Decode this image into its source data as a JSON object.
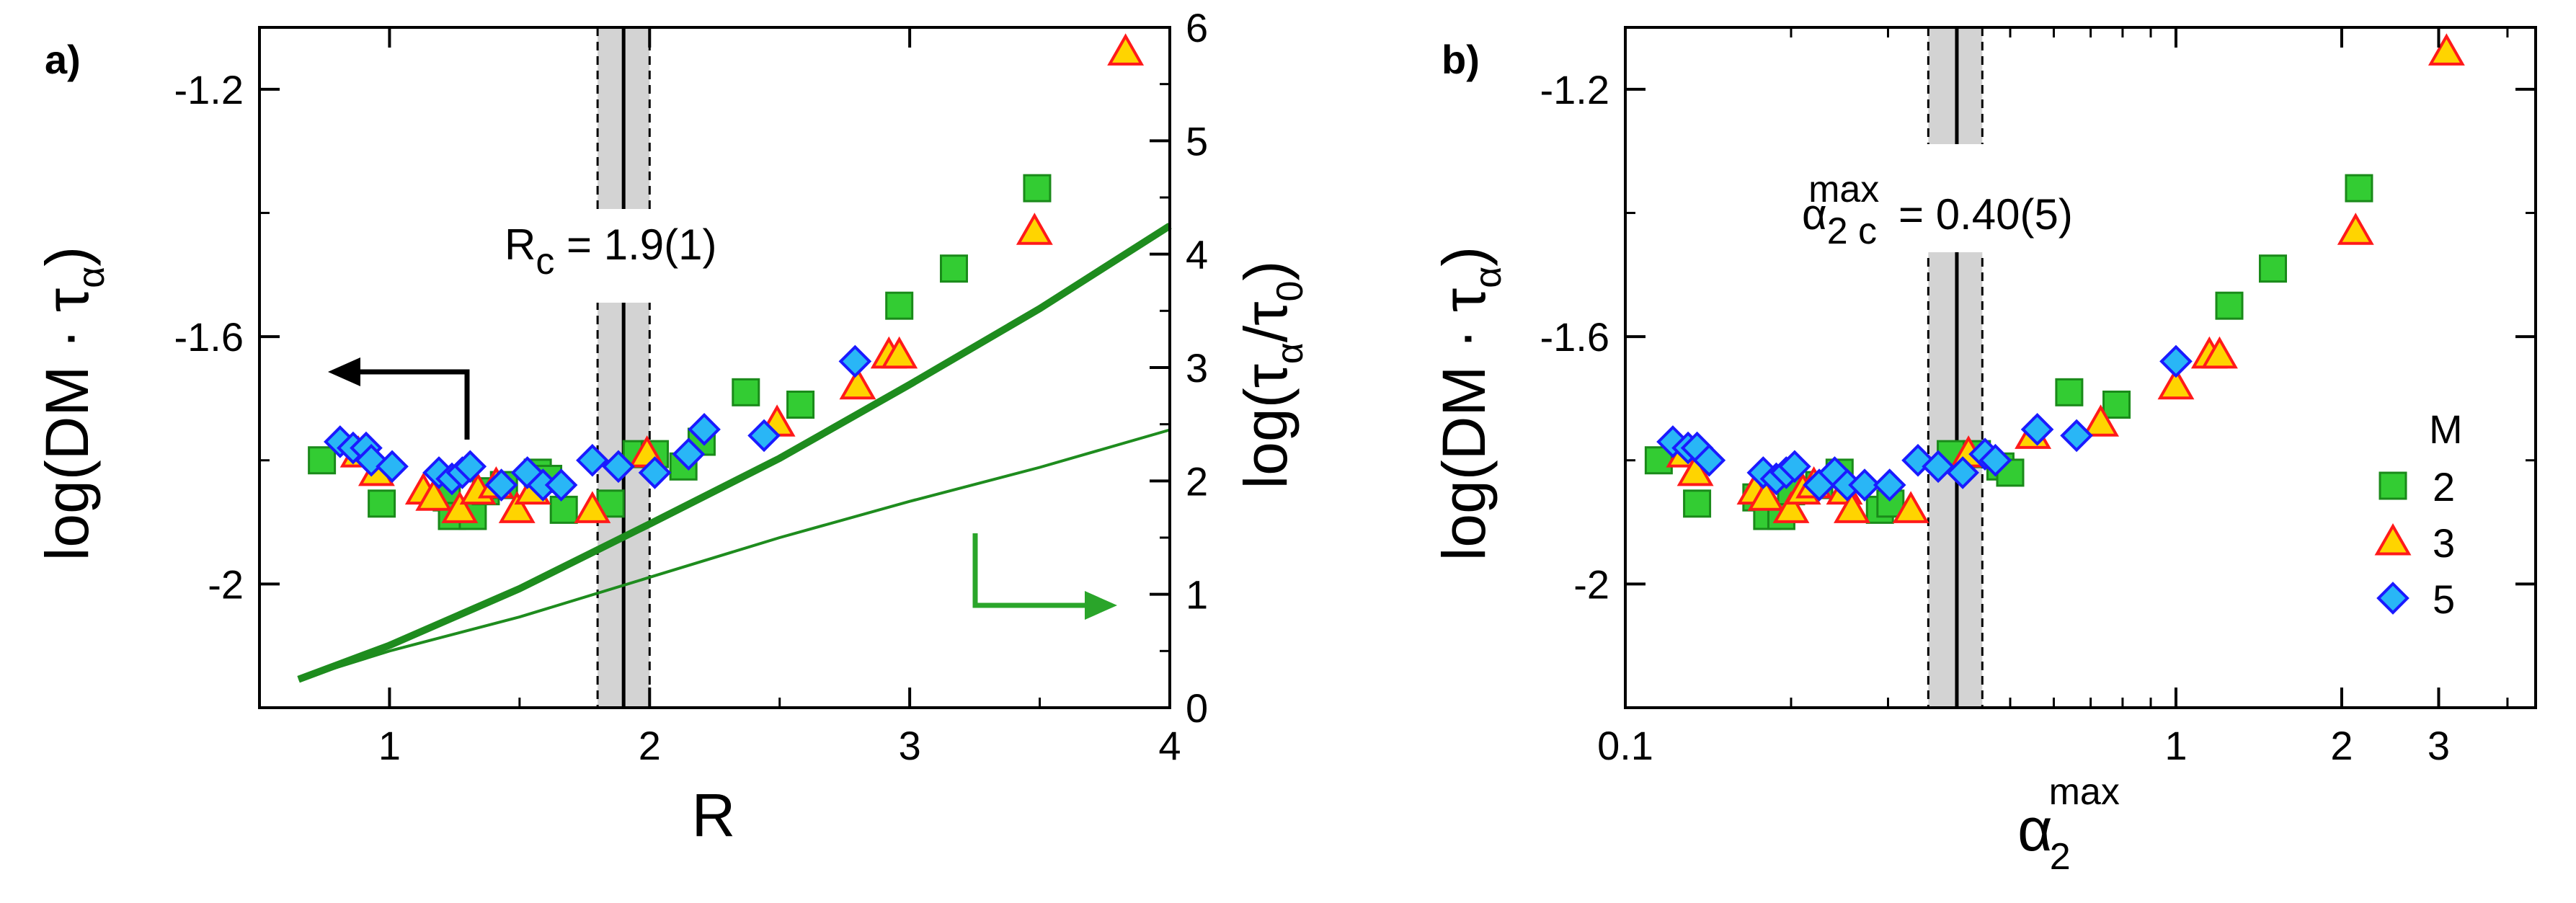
{
  "colors": {
    "green_fill": "#33cc33",
    "green_edge": "#1a8a1a",
    "tri_fill": "#ffd400",
    "tri_edge": "#ff1a1a",
    "dia_fill": "#29b6f6",
    "dia_edge": "#1a1aff",
    "curve": "#1e8c1e",
    "arrow_green": "#2aa52a",
    "band": "#d3d3d3"
  },
  "panel_a": {
    "label": "a)",
    "xlabel": "R",
    "ylabel_left": "log(DM · τα)",
    "ylabel_right": "log(τα/τ0)",
    "ylabel_left_parts": {
      "pre": "log(DM · τ",
      "sub": "α",
      "post": ")"
    },
    "ylabel_right_parts": {
      "pre": "log(τ",
      "sub1": "α",
      "mid": "/τ",
      "sub2": "0",
      "post": ")"
    },
    "annotation": "Rc = 1.9(1)",
    "annotation_parts": {
      "main": "R",
      "sub": "c",
      "rest": " = 1.9(1)"
    },
    "xlim": [
      0.5,
      4.0
    ],
    "ylim_left": [
      -2.2,
      -1.1
    ],
    "ylim_right": [
      0,
      6
    ],
    "xticks": [
      "1",
      "2",
      "3",
      "4"
    ],
    "yticks_left": [
      "-1.2",
      "-1.6",
      "-2"
    ],
    "yticks_right": [
      "0",
      "1",
      "2",
      "3",
      "4",
      "5",
      "6"
    ],
    "critical": {
      "center": 1.9,
      "low": 1.8,
      "high": 2.0
    }
  },
  "panel_b": {
    "label": "b)",
    "xlabel": "α2max",
    "xlabel_parts": {
      "main": "α",
      "sub": "2",
      "sup": "max"
    },
    "ylabel": "log(DM · τα)",
    "ylabel_parts": {
      "pre": "log(DM · τ",
      "sub": "α",
      "post": ")"
    },
    "annotation": "α2cmax = 0.40(5)",
    "annotation_parts": {
      "main": "α",
      "sub": "2 c",
      "sup": "max",
      "rest": " = 0.40(5)"
    },
    "xscale": "log",
    "xlim": [
      0.1,
      4.5
    ],
    "ylim": [
      -2.2,
      -1.1
    ],
    "xticks": [
      "0.1",
      "1",
      "2",
      "3"
    ],
    "yticks": [
      "-1.2",
      "-1.6",
      "-2"
    ],
    "critical": {
      "center": 0.4,
      "low": 0.355,
      "high": 0.445
    },
    "legend": {
      "title": "M",
      "entries": [
        "2",
        "3",
        "5"
      ],
      "position": "right"
    }
  },
  "chart_data": [
    {
      "type": "scatter",
      "panel": "a",
      "title": "",
      "xlabel": "R",
      "ylabel": "log(DM · τα)",
      "xlim": [
        0.5,
        4.0
      ],
      "ylim": [
        -2.2,
        -1.1
      ],
      "series": [
        {
          "name": "M=2",
          "marker": "square",
          "points": [
            [
              0.74,
              -1.8
            ],
            [
              0.97,
              -1.87
            ],
            [
              1.22,
              -1.86
            ],
            [
              1.24,
              -1.89
            ],
            [
              1.32,
              -1.89
            ],
            [
              1.37,
              -1.85
            ],
            [
              1.44,
              -1.84
            ],
            [
              1.57,
              -1.82
            ],
            [
              1.61,
              -1.83
            ],
            [
              1.67,
              -1.88
            ],
            [
              1.85,
              -1.87
            ],
            [
              1.95,
              -1.79
            ],
            [
              2.02,
              -1.79
            ],
            [
              2.13,
              -1.81
            ],
            [
              2.2,
              -1.77
            ],
            [
              2.37,
              -1.69
            ],
            [
              2.58,
              -1.71
            ],
            [
              2.96,
              -1.55
            ],
            [
              3.17,
              -1.49
            ],
            [
              3.49,
              -1.36
            ]
          ]
        },
        {
          "name": "M=3",
          "marker": "triangle",
          "points": [
            [
              0.88,
              -1.79
            ],
            [
              0.95,
              -1.82
            ],
            [
              1.13,
              -1.85
            ],
            [
              1.17,
              -1.86
            ],
            [
              1.27,
              -1.88
            ],
            [
              1.34,
              -1.85
            ],
            [
              1.41,
              -1.84
            ],
            [
              1.49,
              -1.88
            ],
            [
              1.55,
              -1.85
            ],
            [
              1.78,
              -1.88
            ],
            [
              1.99,
              -1.79
            ],
            [
              2.49,
              -1.74
            ],
            [
              2.8,
              -1.68
            ],
            [
              2.92,
              -1.63
            ],
            [
              2.96,
              -1.63
            ],
            [
              3.48,
              -1.43
            ],
            [
              3.83,
              -1.14
            ]
          ]
        },
        {
          "name": "M=5",
          "marker": "diamond",
          "points": [
            [
              0.81,
              -1.77
            ],
            [
              0.86,
              -1.78
            ],
            [
              0.91,
              -1.78
            ],
            [
              0.93,
              -1.8
            ],
            [
              1.01,
              -1.81
            ],
            [
              1.19,
              -1.82
            ],
            [
              1.24,
              -1.83
            ],
            [
              1.28,
              -1.82
            ],
            [
              1.31,
              -1.81
            ],
            [
              1.43,
              -1.84
            ],
            [
              1.53,
              -1.82
            ],
            [
              1.59,
              -1.84
            ],
            [
              1.66,
              -1.84
            ],
            [
              1.78,
              -1.8
            ],
            [
              1.88,
              -1.81
            ],
            [
              2.02,
              -1.82
            ],
            [
              2.15,
              -1.79
            ],
            [
              2.21,
              -1.75
            ],
            [
              2.44,
              -1.76
            ],
            [
              2.79,
              -1.64
            ]
          ]
        }
      ]
    },
    {
      "type": "line",
      "panel": "a",
      "axis": "right",
      "ylabel": "log(τα/τ0)",
      "ylim": [
        0,
        6
      ],
      "series": [
        {
          "name": "thick fit",
          "x": [
            0.65,
            1.0,
            1.5,
            2.0,
            2.5,
            3.0,
            3.5,
            4.0
          ],
          "y": [
            0.25,
            0.55,
            1.05,
            1.62,
            2.2,
            2.85,
            3.52,
            4.25
          ]
        },
        {
          "name": "thin fit",
          "x": [
            0.65,
            1.0,
            1.5,
            2.0,
            2.5,
            3.0,
            3.5,
            4.0
          ],
          "y": [
            0.25,
            0.5,
            0.8,
            1.15,
            1.5,
            1.82,
            2.12,
            2.45
          ]
        }
      ]
    },
    {
      "type": "scatter",
      "panel": "b",
      "title": "",
      "xlabel": "α2max",
      "ylabel": "log(DM · τα)",
      "xscale": "log",
      "xlim": [
        0.1,
        4.5
      ],
      "ylim": [
        -2.2,
        -1.1
      ],
      "series": [
        {
          "name": "M=2",
          "marker": "square",
          "points": [
            [
              0.115,
              -1.8
            ],
            [
              0.135,
              -1.87
            ],
            [
              0.173,
              -1.86
            ],
            [
              0.181,
              -1.89
            ],
            [
              0.192,
              -1.89
            ],
            [
              0.2,
              -1.85
            ],
            [
              0.225,
              -1.84
            ],
            [
              0.245,
              -1.82
            ],
            [
              0.29,
              -1.88
            ],
            [
              0.303,
              -1.87
            ],
            [
              0.39,
              -1.79
            ],
            [
              0.435,
              -1.79
            ],
            [
              0.48,
              -1.81
            ],
            [
              0.5,
              -1.82
            ],
            [
              0.64,
              -1.69
            ],
            [
              0.78,
              -1.71
            ],
            [
              1.25,
              -1.55
            ],
            [
              1.5,
              -1.49
            ],
            [
              2.15,
              -1.36
            ]
          ]
        },
        {
          "name": "M=3",
          "marker": "triangle",
          "points": [
            [
              0.128,
              -1.79
            ],
            [
              0.134,
              -1.82
            ],
            [
              0.172,
              -1.85
            ],
            [
              0.18,
              -1.86
            ],
            [
              0.2,
              -1.88
            ],
            [
              0.21,
              -1.85
            ],
            [
              0.22,
              -1.84
            ],
            [
              0.25,
              -1.85
            ],
            [
              0.258,
              -1.88
            ],
            [
              0.33,
              -1.88
            ],
            [
              0.42,
              -1.79
            ],
            [
              0.55,
              -1.76
            ],
            [
              0.73,
              -1.74
            ],
            [
              1.0,
              -1.68
            ],
            [
              1.15,
              -1.63
            ],
            [
              1.2,
              -1.63
            ],
            [
              2.12,
              -1.43
            ],
            [
              3.1,
              -1.14
            ]
          ]
        },
        {
          "name": "M=5",
          "marker": "diamond",
          "points": [
            [
              0.122,
              -1.77
            ],
            [
              0.13,
              -1.78
            ],
            [
              0.135,
              -1.78
            ],
            [
              0.142,
              -1.8
            ],
            [
              0.178,
              -1.82
            ],
            [
              0.188,
              -1.83
            ],
            [
              0.196,
              -1.82
            ],
            [
              0.203,
              -1.81
            ],
            [
              0.225,
              -1.84
            ],
            [
              0.24,
              -1.82
            ],
            [
              0.253,
              -1.84
            ],
            [
              0.272,
              -1.84
            ],
            [
              0.302,
              -1.84
            ],
            [
              0.34,
              -1.8
            ],
            [
              0.37,
              -1.81
            ],
            [
              0.41,
              -1.82
            ],
            [
              0.45,
              -1.79
            ],
            [
              0.47,
              -1.8
            ],
            [
              0.56,
              -1.75
            ],
            [
              0.66,
              -1.76
            ],
            [
              1.0,
              -1.64
            ]
          ]
        }
      ]
    }
  ]
}
